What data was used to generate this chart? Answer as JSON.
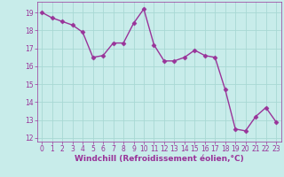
{
  "x": [
    0,
    1,
    2,
    3,
    4,
    5,
    6,
    7,
    8,
    9,
    10,
    11,
    12,
    13,
    14,
    15,
    16,
    17,
    18,
    19,
    20,
    21,
    22,
    23
  ],
  "y": [
    19.0,
    18.7,
    18.5,
    18.3,
    17.9,
    16.5,
    16.6,
    17.3,
    17.3,
    18.4,
    19.2,
    17.2,
    16.3,
    16.3,
    16.5,
    16.9,
    16.6,
    16.5,
    14.7,
    12.5,
    12.4,
    13.2,
    13.7,
    12.9
  ],
  "line_color": "#993399",
  "marker": "D",
  "marker_size": 2.5,
  "bg_color": "#c8ecea",
  "grid_color": "#a8d8d4",
  "xlabel": "Windchill (Refroidissement éolien,°C)",
  "xlabel_color": "#993399",
  "ylim": [
    11.8,
    19.6
  ],
  "xlim": [
    -0.5,
    23.5
  ],
  "yticks": [
    12,
    13,
    14,
    15,
    16,
    17,
    18,
    19
  ],
  "xticks": [
    0,
    1,
    2,
    3,
    4,
    5,
    6,
    7,
    8,
    9,
    10,
    11,
    12,
    13,
    14,
    15,
    16,
    17,
    18,
    19,
    20,
    21,
    22,
    23
  ],
  "tick_color": "#993399",
  "tick_fontsize": 5.5,
  "xlabel_fontsize": 6.5,
  "line_width": 1.0
}
